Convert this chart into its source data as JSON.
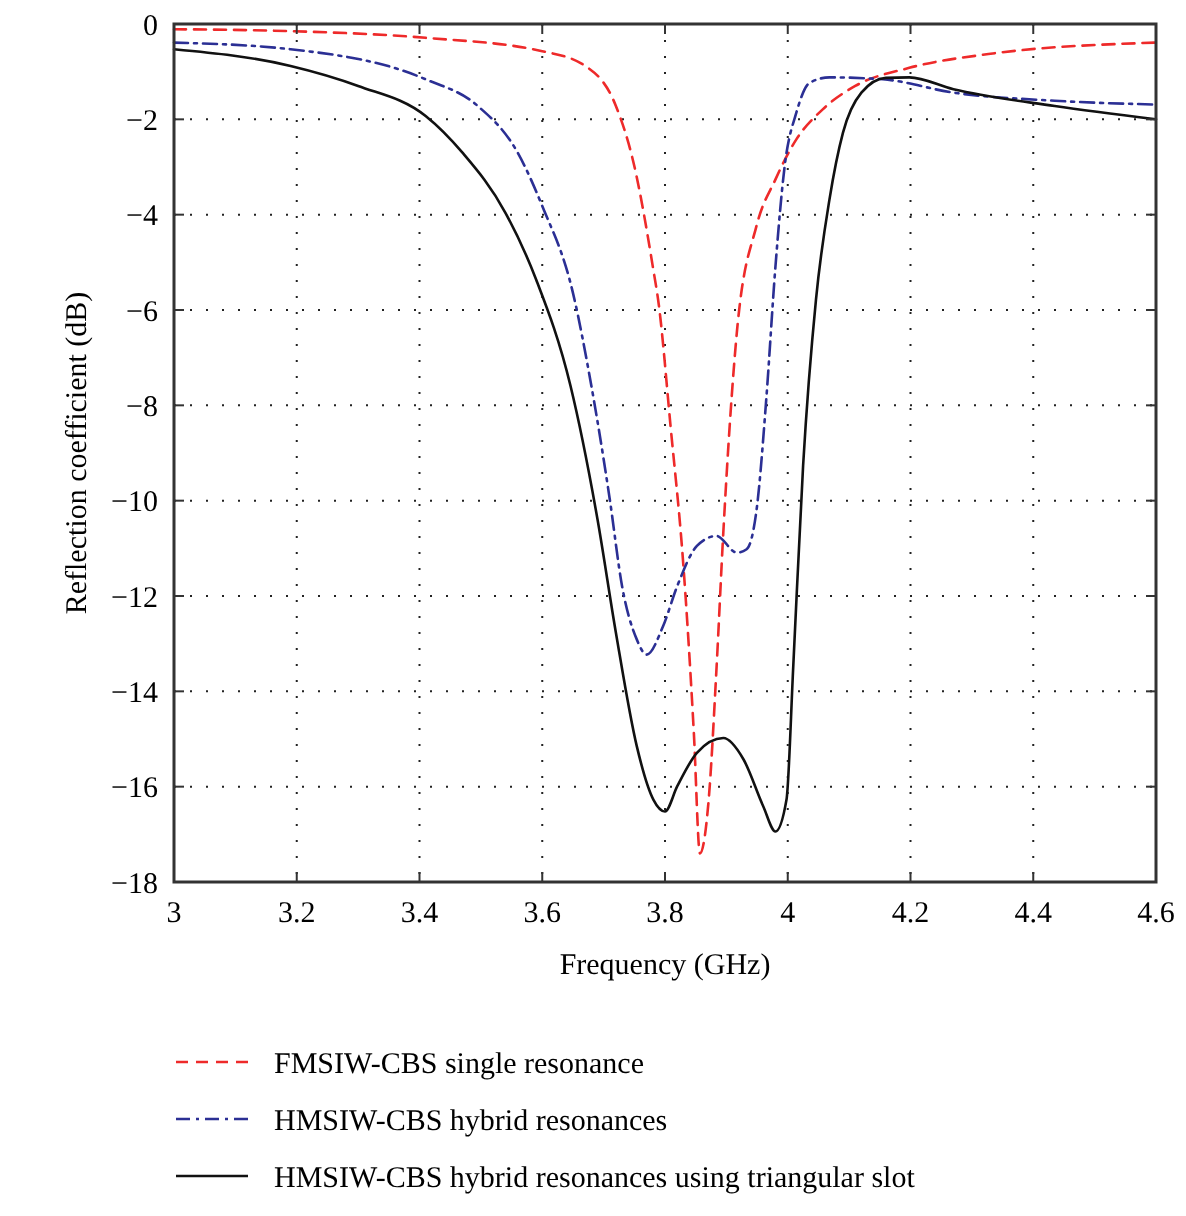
{
  "chart_data": {
    "type": "line",
    "xlabel": "Frequency (GHz)",
    "ylabel": "Reflection coefficient (dB)",
    "xlim": [
      3,
      4.6
    ],
    "xticks": [
      3,
      3.2,
      3.4,
      3.6,
      3.8,
      4,
      4.2,
      4.4,
      4.6
    ],
    "ylim": [
      -18,
      0
    ],
    "yticks": [
      {
        "value": -18,
        "label": "−18"
      },
      {
        "value": -16,
        "label": "−16"
      },
      {
        "value": -14,
        "label": "−14"
      },
      {
        "value": -12,
        "label": "−12"
      },
      {
        "value": -10,
        "label": "−10"
      },
      {
        "value": -8,
        "label": "−8"
      },
      {
        "value": -6,
        "label": "−6"
      },
      {
        "value": -4,
        "label": "−4"
      },
      {
        "value": -2,
        "label": "−2"
      },
      0
    ],
    "grid": true,
    "legend": "bottom",
    "marker": "none",
    "series": [
      {
        "name": "FMSIW-CBS single resonance",
        "color": "#ee2a2a",
        "line_style": "dashed",
        "x": [
          3,
          3.19,
          3.41,
          3.6,
          3.67,
          3.72,
          3.75,
          3.78,
          3.79,
          3.809,
          3.83,
          3.847,
          3.857,
          3.871,
          3.884,
          3.895,
          3.917,
          3.949,
          3.98,
          4.014,
          4.057,
          4.11,
          4.198,
          4.327,
          4.6
        ],
        "values": [
          -0.11,
          -0.15,
          -0.29,
          -0.57,
          -0.88,
          -1.72,
          -2.98,
          -5.08,
          -5.9,
          -8.43,
          -11.37,
          -14.87,
          -17.4,
          -16.3,
          -13.5,
          -10.67,
          -6.48,
          -4.24,
          -3.26,
          -2.42,
          -1.79,
          -1.3,
          -0.92,
          -0.63,
          -0.39
        ]
      },
      {
        "name": "HMSIW-CBS hybrid resonances",
        "color": "#2b2f94",
        "line_style": "dashdot",
        "x": [
          3,
          3.19,
          3.41,
          3.495,
          3.56,
          3.6,
          3.65,
          3.68,
          3.71,
          3.73,
          3.754,
          3.77,
          3.797,
          3.82,
          3.852,
          3.884,
          3.917,
          3.933,
          3.95,
          3.965,
          3.98,
          3.995,
          4.014,
          4.036,
          4.068,
          4.155,
          4.27,
          4.435,
          4.6
        ],
        "values": [
          -0.39,
          -0.53,
          -1.16,
          -1.72,
          -2.7,
          -3.82,
          -5.64,
          -7.59,
          -9.97,
          -11.79,
          -12.91,
          -13.23,
          -12.63,
          -11.79,
          -10.95,
          -10.74,
          -11.09,
          -11.02,
          -10.11,
          -7.87,
          -5.08,
          -2.98,
          -1.86,
          -1.23,
          -1.12,
          -1.16,
          -1.44,
          -1.61,
          -1.69
        ]
      },
      {
        "name": "HMSIW-CBS hybrid resonances using triangular slot",
        "color": "#111111",
        "line_style": "solid",
        "x": [
          3,
          3.19,
          3.3,
          3.41,
          3.47,
          3.54,
          3.59,
          3.646,
          3.69,
          3.72,
          3.754,
          3.781,
          3.8,
          3.82,
          3.852,
          3.895,
          3.928,
          3.96,
          3.98,
          3.998,
          4.009,
          4.025,
          4.046,
          4.068,
          4.09,
          4.12,
          4.16,
          4.198,
          4.27,
          4.435,
          4.6
        ],
        "values": [
          -0.53,
          -0.88,
          -1.3,
          -1.93,
          -2.7,
          -3.96,
          -5.36,
          -7.59,
          -10.39,
          -12.77,
          -15.15,
          -16.27,
          -16.52,
          -15.99,
          -15.29,
          -14.98,
          -15.43,
          -16.41,
          -16.94,
          -16.27,
          -13.47,
          -9.27,
          -5.78,
          -3.68,
          -2.28,
          -1.44,
          -1.13,
          -1.12,
          -1.37,
          -1.72,
          -2.0
        ]
      }
    ]
  }
}
